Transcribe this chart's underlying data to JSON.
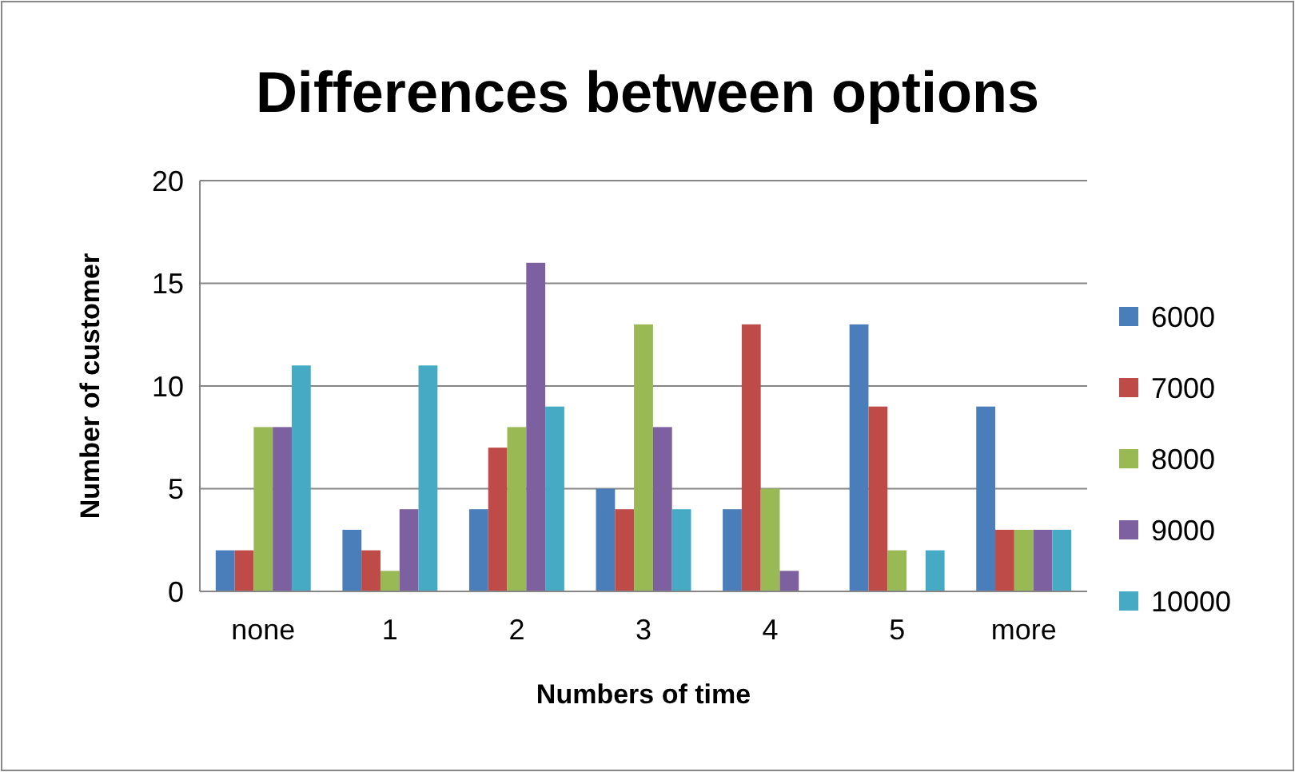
{
  "chart_data": {
    "type": "bar",
    "title": "Differences between options",
    "xlabel": "Numbers of time",
    "ylabel": "Number of customer",
    "categories": [
      "none",
      "1",
      "2",
      "3",
      "4",
      "5",
      "more"
    ],
    "series": [
      {
        "name": "6000",
        "color": "#4a7ebb",
        "values": [
          2,
          3,
          4,
          5,
          4,
          13,
          9
        ]
      },
      {
        "name": "7000",
        "color": "#be4b48",
        "values": [
          2,
          2,
          7,
          4,
          13,
          9,
          3
        ]
      },
      {
        "name": "8000",
        "color": "#98b954",
        "values": [
          8,
          1,
          8,
          13,
          5,
          2,
          3
        ]
      },
      {
        "name": "9000",
        "color": "#7d60a0",
        "values": [
          8,
          4,
          16,
          8,
          1,
          0,
          3
        ]
      },
      {
        "name": "10000",
        "color": "#46aac5",
        "values": [
          11,
          11,
          9,
          4,
          0,
          2,
          3
        ]
      }
    ],
    "ylim": [
      0,
      20
    ],
    "yticks": [
      0,
      5,
      10,
      15,
      20
    ],
    "grid": "y",
    "legend": "right"
  }
}
